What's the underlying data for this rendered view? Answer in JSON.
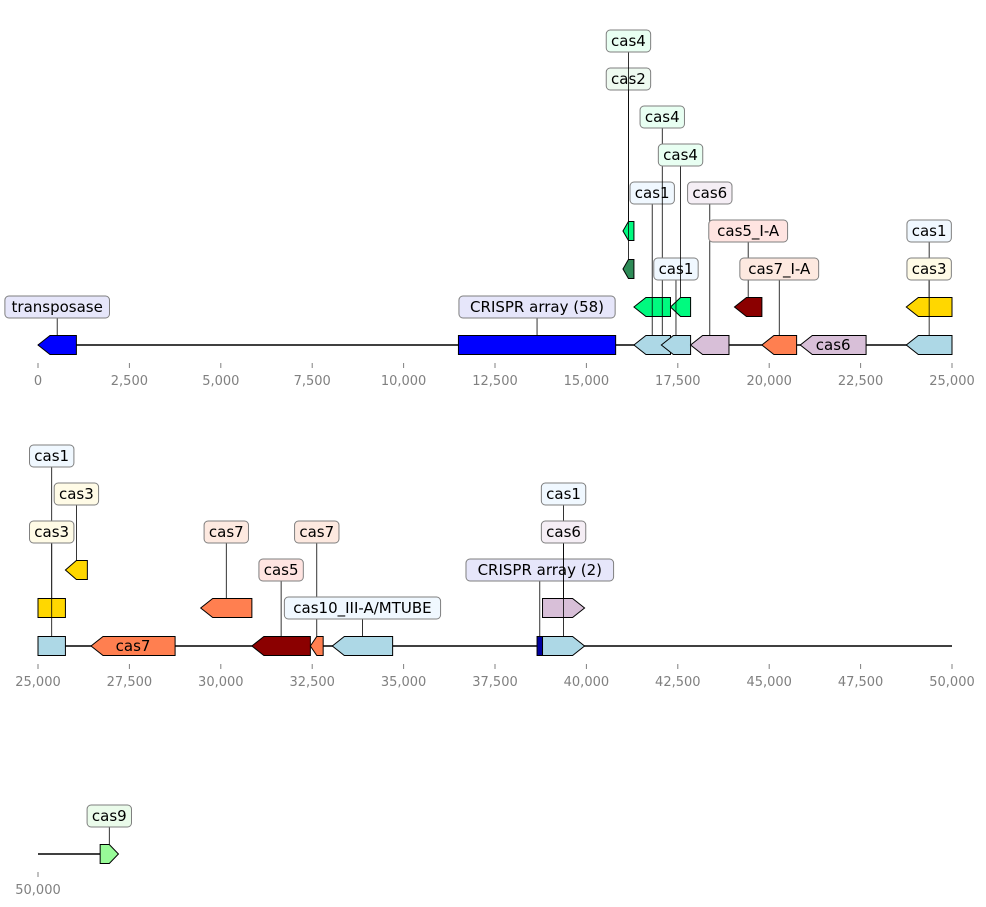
{
  "chart_data": {
    "type": "genome-map",
    "rows": [
      {
        "xlim": [
          0,
          25000
        ],
        "ticks": [
          0,
          2500,
          5000,
          7500,
          10000,
          12500,
          15000,
          17500,
          20000,
          22500,
          25000
        ],
        "tick_labels": [
          "0",
          "2,500",
          "5,000",
          "7,500",
          "10,000",
          "12,500",
          "15,000",
          "17,500",
          "20,000",
          "22,500",
          "25,000"
        ],
        "backbone": [
          0,
          25000
        ],
        "features": [
          {
            "start": 0,
            "end": 1050,
            "strand": -1,
            "level": 0,
            "color": "#0000ff",
            "label": "transposase",
            "label_pos": "above",
            "label_level": 1,
            "label_bg": "#e6e6fa"
          },
          {
            "start": 11500,
            "end": 15800,
            "strand": 0,
            "level": 0,
            "color": "#0000ff",
            "label": "CRISPR array (58)",
            "label_pos": "above",
            "label_level": 1,
            "label_bg": "#e6e6fa"
          },
          {
            "start": 16300,
            "end": 17300,
            "strand": -1,
            "level": 0,
            "color": "#add8e6",
            "label": "cas1",
            "label_pos": "above",
            "label_level": 4,
            "label_bg": "#f0f8ff"
          },
          {
            "start": 16300,
            "end": 17300,
            "strand": -1,
            "level": 1,
            "color": "#00fa7f"
          },
          {
            "start": 16350,
            "end": 17800,
            "strand": 0,
            "level": 5,
            "color": "none",
            "label": "cas4",
            "label_pos": "above",
            "label_level": 6,
            "label_bg": "#e8fff2",
            "hidden_shape": true
          },
          {
            "start": 17050,
            "end": 17850,
            "strand": -1,
            "level": 0,
            "color": "#add8e6",
            "label": "cas1",
            "label_pos": "above",
            "label_level": 2,
            "label_bg": "#f0f8ff"
          },
          {
            "start": 17300,
            "end": 17850,
            "strand": -1,
            "level": 1,
            "color": "#00fa7f",
            "label": "cas4",
            "label_pos": "above",
            "label_level": 5,
            "label_bg": "#e8fff2"
          },
          {
            "start": 16000,
            "end": 16300,
            "strand": -1,
            "level": 2,
            "color": "#2e8b57",
            "label": "cas2",
            "label_pos": "above",
            "label_level": 7,
            "label_bg": "#eefaf0"
          },
          {
            "start": 16000,
            "end": 16300,
            "strand": -1,
            "level": 3,
            "color": "#00fa7f",
            "label": "cas4",
            "label_pos": "above",
            "label_level": 8,
            "label_bg": "#e8fff2"
          },
          {
            "start": 17850,
            "end": 18900,
            "strand": -1,
            "level": 0,
            "color": "#d8bfd8",
            "label": "cas6",
            "label_pos": "above",
            "label_level": 4,
            "label_bg": "#f5eef5"
          },
          {
            "start": 19050,
            "end": 19800,
            "strand": -1,
            "level": 1,
            "color": "#8b0000",
            "label": "cas5_I-A",
            "label_pos": "above",
            "label_level": 3,
            "label_bg": "#ffe4e1"
          },
          {
            "start": 19800,
            "end": 20750,
            "strand": -1,
            "level": 0,
            "color": "#ff7f50",
            "label": "cas7_I-A",
            "label_pos": "above",
            "label_level": 2,
            "label_bg": "#fde9e0"
          },
          {
            "start": 20850,
            "end": 22650,
            "strand": -1,
            "level": 0,
            "color": "#d8bfd8",
            "label": "cas6",
            "label_pos": "inline"
          },
          {
            "start": 23750,
            "end": 25000,
            "strand": -1,
            "level": 0,
            "color": "#add8e6",
            "label": "cas1",
            "label_pos": "above",
            "label_level": 3,
            "label_bg": "#f0f8ff"
          },
          {
            "start": 23750,
            "end": 25000,
            "strand": -1,
            "level": 1,
            "color": "#ffd700",
            "label": "cas3",
            "label_pos": "above",
            "label_level": 2,
            "label_bg": "#fffbe6"
          }
        ]
      },
      {
        "xlim": [
          25000,
          50000
        ],
        "ticks": [
          25000,
          27500,
          30000,
          32500,
          35000,
          37500,
          40000,
          42500,
          45000,
          47500,
          50000
        ],
        "tick_labels": [
          "25,000",
          "27,500",
          "30,000",
          "32,500",
          "35,000",
          "37,500",
          "40,000",
          "42,500",
          "45,000",
          "47,500",
          "50,000"
        ],
        "backbone": [
          25000,
          50000
        ],
        "features": [
          {
            "start": 25000,
            "end": 25750,
            "strand": 0,
            "level": 0,
            "color": "#add8e6",
            "label": "cas1",
            "label_pos": "above",
            "label_level": 5,
            "label_bg": "#f0f8ff"
          },
          {
            "start": 25000,
            "end": 25750,
            "strand": 0,
            "level": 1,
            "color": "#ffd700",
            "label": "cas3",
            "label_pos": "above",
            "label_level": 3,
            "label_bg": "#fffbe6"
          },
          {
            "start": 25750,
            "end": 26350,
            "strand": -1,
            "level": 2,
            "color": "#ffd700",
            "label": "cas3",
            "label_pos": "above",
            "label_level": 4,
            "label_bg": "#fffbe6"
          },
          {
            "start": 26450,
            "end": 28750,
            "strand": -1,
            "level": 0,
            "color": "#ff7f50",
            "label": "cas7",
            "label_pos": "inline"
          },
          {
            "start": 29450,
            "end": 30850,
            "strand": -1,
            "level": 1,
            "color": "#ff7f50",
            "label": "cas7",
            "label_pos": "above",
            "label_level": 3,
            "label_bg": "#fde9e0"
          },
          {
            "start": 30850,
            "end": 32450,
            "strand": -1,
            "level": 0,
            "color": "#8b0000",
            "label": "cas5",
            "label_pos": "above",
            "label_level": 2,
            "label_bg": "#ffe4e1"
          },
          {
            "start": 32450,
            "end": 32800,
            "strand": -1,
            "level": 0,
            "color": "#ff7f50",
            "label": "cas7",
            "label_pos": "above",
            "label_level": 3,
            "label_bg": "#fde9e0"
          },
          {
            "start": 33050,
            "end": 34700,
            "strand": -1,
            "level": 0,
            "color": "#add8e6",
            "label": "cas10_III-A/MTUBE",
            "label_pos": "above",
            "label_level": 1,
            "label_bg": "#f0f8ff"
          },
          {
            "start": 38650,
            "end": 38800,
            "strand": 0,
            "level": 0,
            "color": "#0000a0",
            "label": "CRISPR array (2)",
            "label_pos": "above",
            "label_level": 2,
            "label_bg": "#e6e6fa"
          },
          {
            "start": 38800,
            "end": 39950,
            "strand": 1,
            "level": 0,
            "color": "#add8e6",
            "label": "cas1",
            "label_pos": "above",
            "label_level": 4,
            "label_bg": "#f0f8ff"
          },
          {
            "start": 38800,
            "end": 39950,
            "strand": 1,
            "level": 1,
            "color": "#d8bfd8",
            "label": "cas6",
            "label_pos": "above",
            "label_level": 3,
            "label_bg": "#f5eef5"
          }
        ]
      },
      {
        "xlim": [
          50000,
          75000
        ],
        "ticks": [
          50000
        ],
        "tick_labels": [
          "50,000"
        ],
        "backbone": [
          50000,
          52200
        ],
        "features": [
          {
            "start": 51700,
            "end": 52200,
            "strand": 1,
            "level": 0,
            "color": "#98fb98",
            "label": "cas9",
            "label_pos": "above",
            "label_level": 1,
            "label_bg": "#eafbea"
          }
        ]
      }
    ]
  }
}
